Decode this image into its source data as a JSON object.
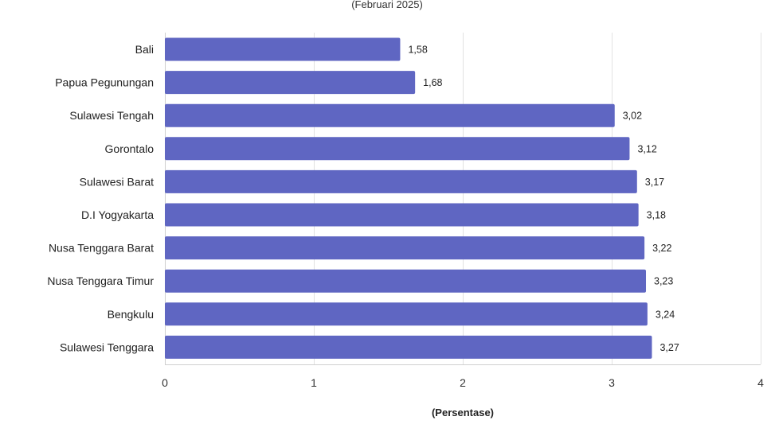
{
  "chart_data": {
    "type": "bar",
    "orientation": "horizontal",
    "subtitle": "(Februari 2025)",
    "xlabel": "(Persentase)",
    "ylabel": "",
    "xlim": [
      0,
      4
    ],
    "x_ticks": [
      "0",
      "1",
      "2",
      "3",
      "4"
    ],
    "grid": true,
    "bar_color": "#5f66c2",
    "categories": [
      "Bali",
      "Papua Pegunungan",
      "Sulawesi Tengah",
      "Gorontalo",
      "Sulawesi Barat",
      "D.I Yogyakarta",
      "Nusa Tenggara Barat",
      "Nusa Tenggara Timur",
      "Bengkulu",
      "Sulawesi Tenggara"
    ],
    "values": [
      1.58,
      1.68,
      3.02,
      3.12,
      3.17,
      3.18,
      3.22,
      3.23,
      3.24,
      3.27
    ],
    "value_labels": [
      "1,58",
      "1,68",
      "3,02",
      "3,12",
      "3,17",
      "3,18",
      "3,22",
      "3,23",
      "3,24",
      "3,27"
    ]
  }
}
